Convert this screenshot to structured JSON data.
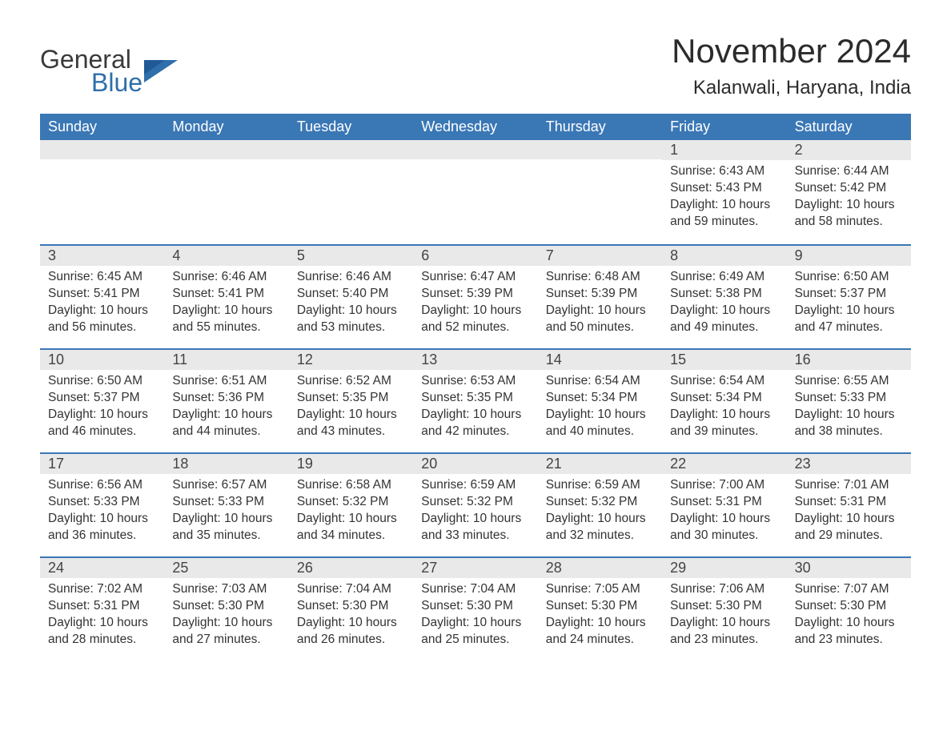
{
  "brand": {
    "word1": "General",
    "word2": "Blue",
    "text_color": "#3a3a3a",
    "accent_color": "#2f6fab"
  },
  "header": {
    "month_title": "November 2024",
    "location": "Kalanwali, Haryana, India",
    "title_fontsize": 42,
    "location_fontsize": 24,
    "title_color": "#2b2b2b"
  },
  "styling": {
    "header_bg": "#3a77b5",
    "header_text": "#ffffff",
    "daybar_bg": "#e9e9e9",
    "row_border": "#3a77b5",
    "body_text": "#333333",
    "page_bg": "#ffffff",
    "weekday_fontsize": 18,
    "daynum_fontsize": 18,
    "content_fontsize": 15.5
  },
  "weekdays": [
    "Sunday",
    "Monday",
    "Tuesday",
    "Wednesday",
    "Thursday",
    "Friday",
    "Saturday"
  ],
  "labels": {
    "sunrise": "Sunrise:",
    "sunset": "Sunset:",
    "daylight": "Daylight:"
  },
  "weeks": [
    [
      {
        "empty": true
      },
      {
        "empty": true
      },
      {
        "empty": true
      },
      {
        "empty": true
      },
      {
        "empty": true
      },
      {
        "day": "1",
        "sunrise": "6:43 AM",
        "sunset": "5:43 PM",
        "daylight": "10 hours and 59 minutes."
      },
      {
        "day": "2",
        "sunrise": "6:44 AM",
        "sunset": "5:42 PM",
        "daylight": "10 hours and 58 minutes."
      }
    ],
    [
      {
        "day": "3",
        "sunrise": "6:45 AM",
        "sunset": "5:41 PM",
        "daylight": "10 hours and 56 minutes."
      },
      {
        "day": "4",
        "sunrise": "6:46 AM",
        "sunset": "5:41 PM",
        "daylight": "10 hours and 55 minutes."
      },
      {
        "day": "5",
        "sunrise": "6:46 AM",
        "sunset": "5:40 PM",
        "daylight": "10 hours and 53 minutes."
      },
      {
        "day": "6",
        "sunrise": "6:47 AM",
        "sunset": "5:39 PM",
        "daylight": "10 hours and 52 minutes."
      },
      {
        "day": "7",
        "sunrise": "6:48 AM",
        "sunset": "5:39 PM",
        "daylight": "10 hours and 50 minutes."
      },
      {
        "day": "8",
        "sunrise": "6:49 AM",
        "sunset": "5:38 PM",
        "daylight": "10 hours and 49 minutes."
      },
      {
        "day": "9",
        "sunrise": "6:50 AM",
        "sunset": "5:37 PM",
        "daylight": "10 hours and 47 minutes."
      }
    ],
    [
      {
        "day": "10",
        "sunrise": "6:50 AM",
        "sunset": "5:37 PM",
        "daylight": "10 hours and 46 minutes."
      },
      {
        "day": "11",
        "sunrise": "6:51 AM",
        "sunset": "5:36 PM",
        "daylight": "10 hours and 44 minutes."
      },
      {
        "day": "12",
        "sunrise": "6:52 AM",
        "sunset": "5:35 PM",
        "daylight": "10 hours and 43 minutes."
      },
      {
        "day": "13",
        "sunrise": "6:53 AM",
        "sunset": "5:35 PM",
        "daylight": "10 hours and 42 minutes."
      },
      {
        "day": "14",
        "sunrise": "6:54 AM",
        "sunset": "5:34 PM",
        "daylight": "10 hours and 40 minutes."
      },
      {
        "day": "15",
        "sunrise": "6:54 AM",
        "sunset": "5:34 PM",
        "daylight": "10 hours and 39 minutes."
      },
      {
        "day": "16",
        "sunrise": "6:55 AM",
        "sunset": "5:33 PM",
        "daylight": "10 hours and 38 minutes."
      }
    ],
    [
      {
        "day": "17",
        "sunrise": "6:56 AM",
        "sunset": "5:33 PM",
        "daylight": "10 hours and 36 minutes."
      },
      {
        "day": "18",
        "sunrise": "6:57 AM",
        "sunset": "5:33 PM",
        "daylight": "10 hours and 35 minutes."
      },
      {
        "day": "19",
        "sunrise": "6:58 AM",
        "sunset": "5:32 PM",
        "daylight": "10 hours and 34 minutes."
      },
      {
        "day": "20",
        "sunrise": "6:59 AM",
        "sunset": "5:32 PM",
        "daylight": "10 hours and 33 minutes."
      },
      {
        "day": "21",
        "sunrise": "6:59 AM",
        "sunset": "5:32 PM",
        "daylight": "10 hours and 32 minutes."
      },
      {
        "day": "22",
        "sunrise": "7:00 AM",
        "sunset": "5:31 PM",
        "daylight": "10 hours and 30 minutes."
      },
      {
        "day": "23",
        "sunrise": "7:01 AM",
        "sunset": "5:31 PM",
        "daylight": "10 hours and 29 minutes."
      }
    ],
    [
      {
        "day": "24",
        "sunrise": "7:02 AM",
        "sunset": "5:31 PM",
        "daylight": "10 hours and 28 minutes."
      },
      {
        "day": "25",
        "sunrise": "7:03 AM",
        "sunset": "5:30 PM",
        "daylight": "10 hours and 27 minutes."
      },
      {
        "day": "26",
        "sunrise": "7:04 AM",
        "sunset": "5:30 PM",
        "daylight": "10 hours and 26 minutes."
      },
      {
        "day": "27",
        "sunrise": "7:04 AM",
        "sunset": "5:30 PM",
        "daylight": "10 hours and 25 minutes."
      },
      {
        "day": "28",
        "sunrise": "7:05 AM",
        "sunset": "5:30 PM",
        "daylight": "10 hours and 24 minutes."
      },
      {
        "day": "29",
        "sunrise": "7:06 AM",
        "sunset": "5:30 PM",
        "daylight": "10 hours and 23 minutes."
      },
      {
        "day": "30",
        "sunrise": "7:07 AM",
        "sunset": "5:30 PM",
        "daylight": "10 hours and 23 minutes."
      }
    ]
  ]
}
